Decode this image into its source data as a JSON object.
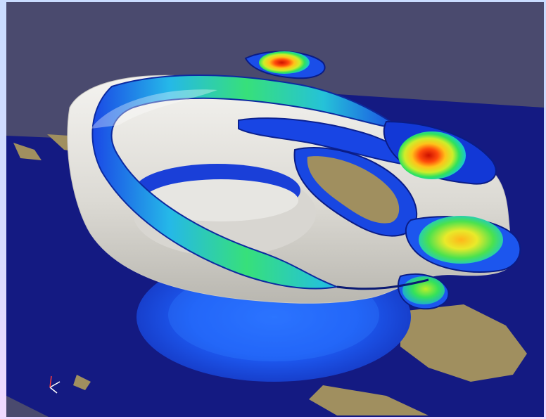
{
  "scene": {
    "background_color": "#4a4a6e",
    "outer_frame_gradient": [
      "#c9dcff",
      "#f0d9ff"
    ],
    "ground_plane_color": "#141a82",
    "landmass_color": "#a08f5f",
    "surface_color": "#ecebe7",
    "colormap": [
      "#0a2bd1",
      "#2a85ff",
      "#18e1c8",
      "#2ee25d",
      "#cdee2a",
      "#ffc21a",
      "#ff4b0b",
      "#cc1000"
    ]
  },
  "orientation_axes": {
    "icon": "xyz-axes-icon",
    "x_color": "#ffffff",
    "y_color": "#ffffff",
    "z_color": "#ff3b3b"
  }
}
